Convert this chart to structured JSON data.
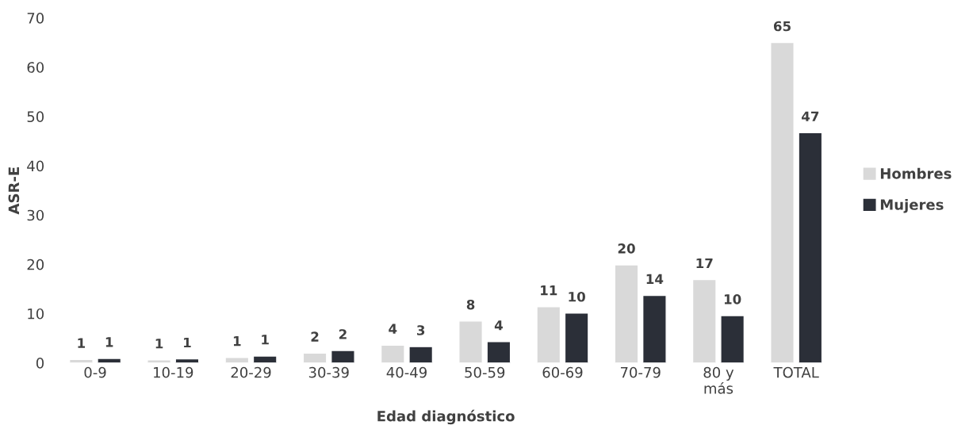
{
  "chart_data": {
    "type": "bar",
    "xlabel": "Edad diagnóstico",
    "ylabel": "ASR-E",
    "categories": [
      "0-9",
      "10-19",
      "20-29",
      "30-39",
      "40-49",
      "50-59",
      "60-69",
      "70-79",
      "80 y\nmás",
      "TOTAL"
    ],
    "series": [
      {
        "name": "Hombres",
        "color": "#d9d9d9",
        "values": [
          0.7,
          0.6,
          1.1,
          2.0,
          3.6,
          8.5,
          11.4,
          19.9,
          16.9,
          65.0
        ],
        "value_labels": [
          "1",
          "1",
          "1",
          "2",
          "4",
          "8",
          "11",
          "20",
          "17",
          "65"
        ]
      },
      {
        "name": "Mujeres",
        "color": "#2b2f38",
        "values": [
          0.9,
          0.8,
          1.4,
          2.5,
          3.3,
          4.3,
          10.1,
          13.7,
          9.6,
          46.7
        ],
        "value_labels": [
          "1",
          "1",
          "1",
          "2",
          "3",
          "4",
          "10",
          "14",
          "10",
          "47"
        ]
      }
    ],
    "ylim": [
      0,
      70
    ],
    "yticks": [
      0,
      10,
      20,
      30,
      40,
      50,
      60,
      70
    ],
    "grid": false,
    "legend": "right"
  }
}
